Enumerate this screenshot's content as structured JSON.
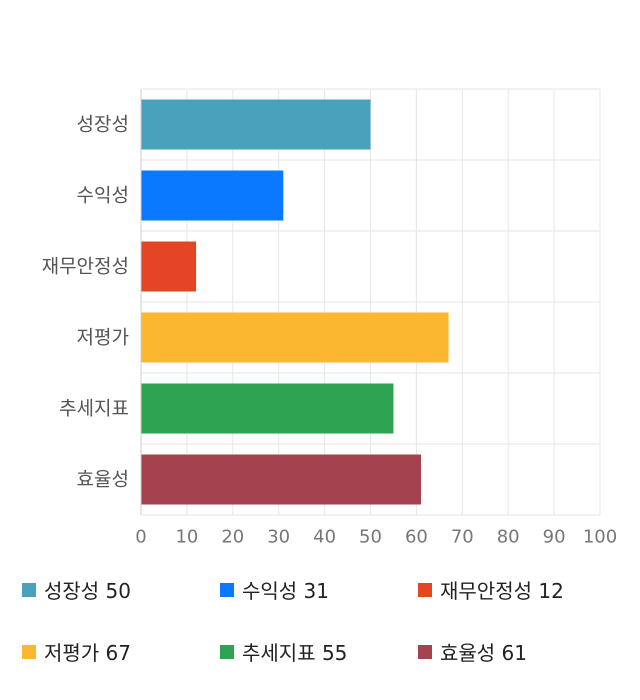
{
  "chart_data": {
    "type": "bar",
    "orientation": "horizontal",
    "categories": [
      "성장성",
      "수익성",
      "재무안정성",
      "저평가",
      "추세지표",
      "효율성"
    ],
    "values": [
      50,
      31,
      12,
      67,
      55,
      61
    ],
    "colors": [
      "#4aa1bb",
      "#0a78ff",
      "#e44525",
      "#fcb731",
      "#2ca452",
      "#a5424f"
    ],
    "xlim": [
      0,
      100
    ],
    "xticks": [
      0,
      10,
      20,
      30,
      40,
      50,
      60,
      70,
      80,
      90,
      100
    ],
    "grid": true,
    "legend_position": "bottom",
    "title": "",
    "xlabel": "",
    "ylabel": ""
  },
  "legend": [
    {
      "label": "성장성 50"
    },
    {
      "label": "수익성 31"
    },
    {
      "label": "재무안정성 12"
    },
    {
      "label": "저평가 67"
    },
    {
      "label": "추세지표 55"
    },
    {
      "label": "효율성 61"
    }
  ]
}
